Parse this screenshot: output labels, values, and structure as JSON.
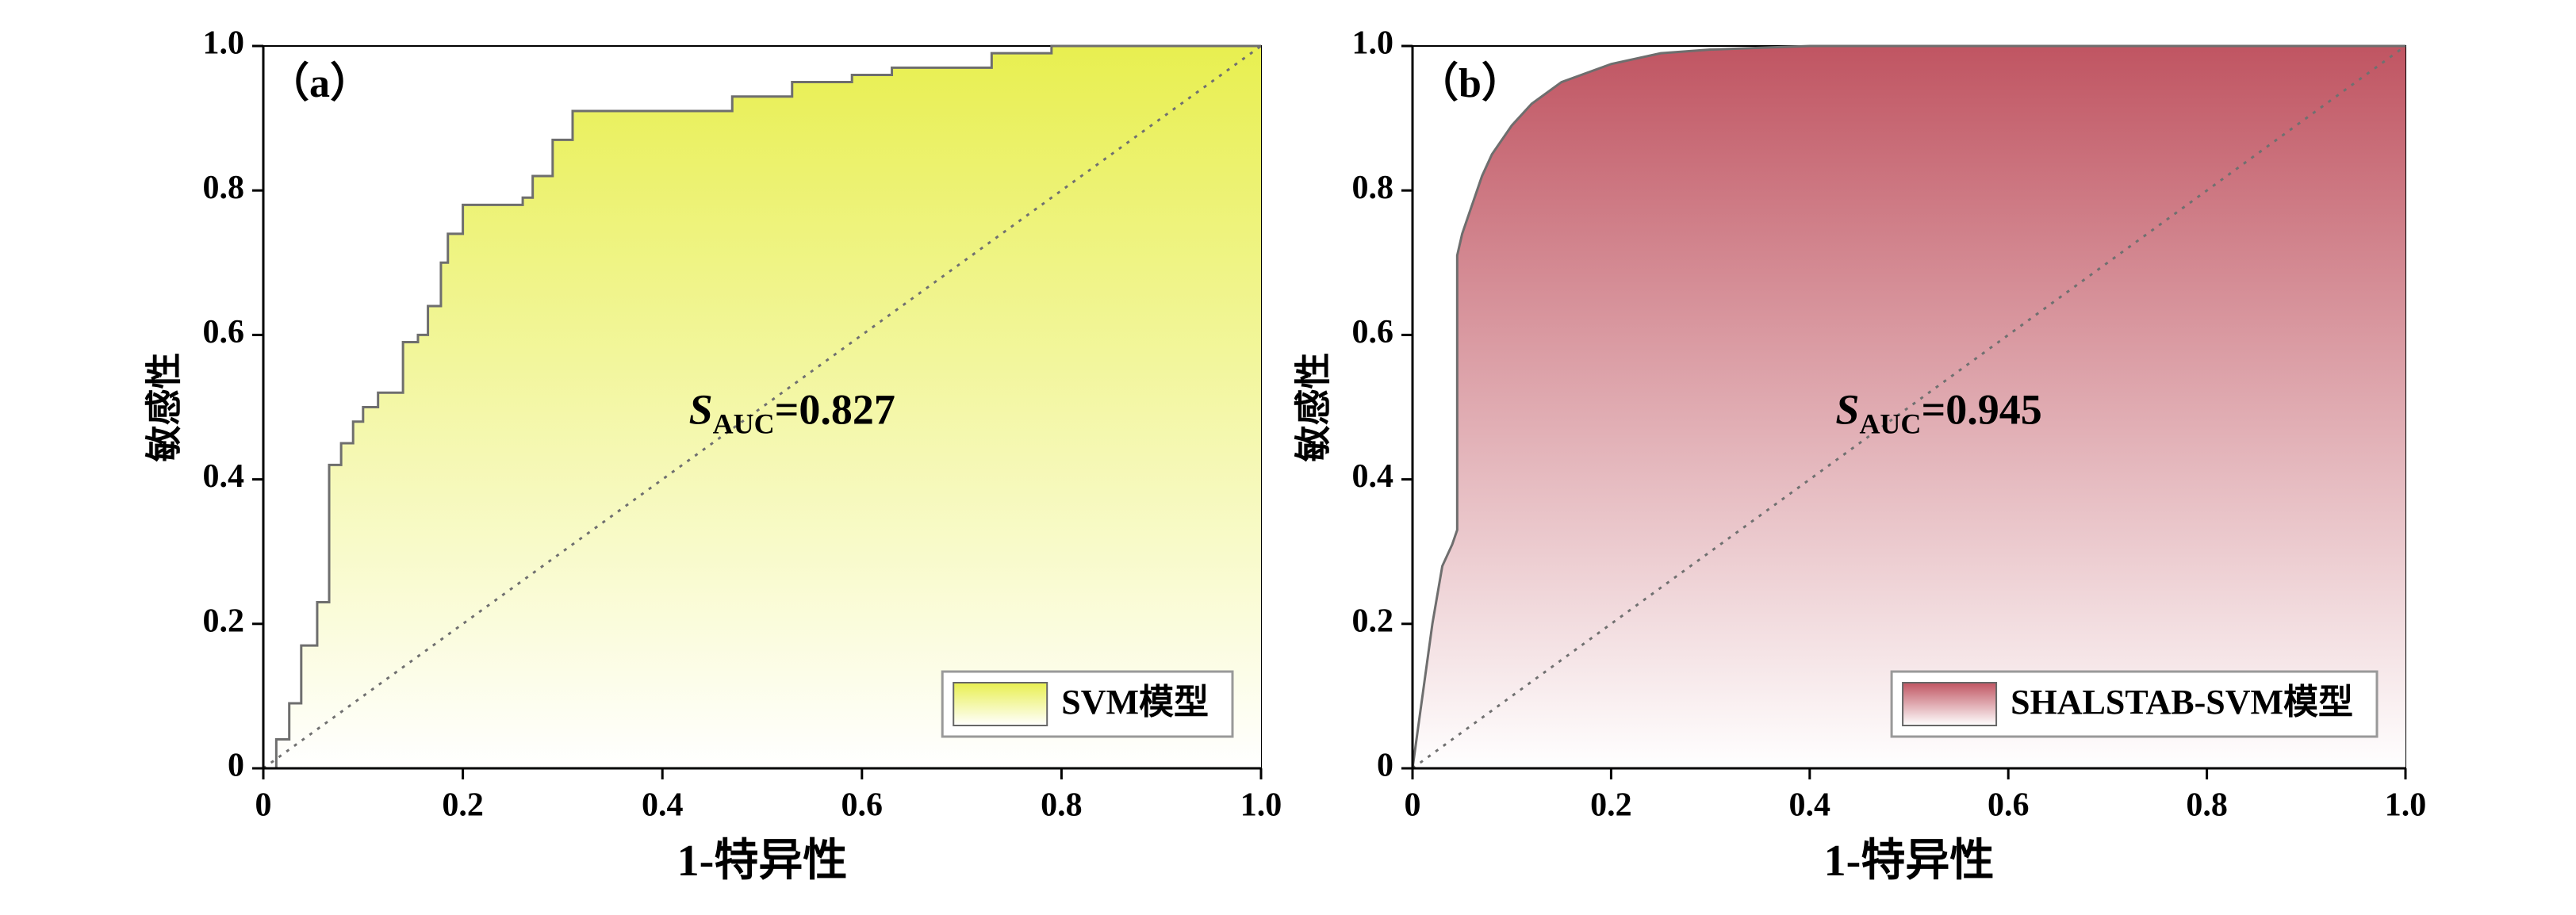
{
  "chart_data": [
    {
      "type": "area",
      "title": "（a）",
      "x_label": "1-特异性",
      "y_label": "敏感性",
      "annotation": {
        "symbol": "S",
        "subscript": "AUC",
        "text": "=0.827"
      },
      "x": [
        0,
        0.013,
        0.013,
        0.026,
        0.026,
        0.038,
        0.038,
        0.054,
        0.054,
        0.066,
        0.066,
        0.078,
        0.078,
        0.09,
        0.09,
        0.1,
        0.1,
        0.115,
        0.115,
        0.14,
        0.14,
        0.155,
        0.155,
        0.165,
        0.165,
        0.178,
        0.178,
        0.185,
        0.185,
        0.2,
        0.2,
        0.26,
        0.26,
        0.27,
        0.27,
        0.29,
        0.29,
        0.31,
        0.31,
        0.47,
        0.47,
        0.53,
        0.53,
        0.59,
        0.59,
        0.63,
        0.63,
        0.73,
        0.73,
        0.79,
        0.79,
        1.0
      ],
      "series": [
        {
          "name": "SVM模型",
          "color": "#e8ef50",
          "values": [
            0,
            0,
            0.04,
            0.04,
            0.09,
            0.09,
            0.17,
            0.17,
            0.23,
            0.23,
            0.42,
            0.42,
            0.45,
            0.45,
            0.48,
            0.48,
            0.5,
            0.5,
            0.52,
            0.52,
            0.59,
            0.59,
            0.6,
            0.6,
            0.64,
            0.64,
            0.7,
            0.7,
            0.74,
            0.74,
            0.78,
            0.78,
            0.79,
            0.79,
            0.82,
            0.82,
            0.87,
            0.87,
            0.91,
            0.91,
            0.93,
            0.93,
            0.95,
            0.95,
            0.96,
            0.96,
            0.97,
            0.97,
            0.99,
            0.99,
            1.0,
            1.0
          ]
        }
      ],
      "xlim": [
        0,
        1
      ],
      "ylim": [
        0,
        1
      ],
      "xticks": [
        0,
        0.2,
        0.4,
        0.6,
        0.8,
        {
          "value": 1,
          "label": "1.0"
        }
      ],
      "yticks": [
        0,
        0.2,
        0.4,
        0.6,
        0.8,
        {
          "value": 1,
          "label": "1.0"
        }
      ],
      "legend": "lower right"
    },
    {
      "type": "area",
      "title": "（b）",
      "x_label": "1-特异性",
      "y_label": "敏感性",
      "annotation": {
        "symbol": "S",
        "subscript": "AUC",
        "text": "=0.945"
      },
      "x": [
        0,
        0.01,
        0.02,
        0.03,
        0.04,
        0.045,
        0.045,
        0.05,
        0.06,
        0.07,
        0.08,
        0.1,
        0.12,
        0.15,
        0.2,
        0.25,
        0.3,
        0.4,
        0.5,
        1.0
      ],
      "series": [
        {
          "name": "SHALSTAB-SVM模型",
          "color": "#c05562",
          "values": [
            0,
            0.1,
            0.2,
            0.28,
            0.31,
            0.33,
            0.71,
            0.74,
            0.78,
            0.82,
            0.85,
            0.89,
            0.92,
            0.95,
            0.975,
            0.99,
            0.995,
            1,
            1,
            1
          ]
        }
      ],
      "xlim": [
        0,
        1
      ],
      "ylim": [
        0,
        1
      ],
      "xticks": [
        0,
        0.2,
        0.4,
        0.6,
        0.8,
        {
          "value": 1,
          "label": "1.0"
        }
      ],
      "yticks": [
        0,
        0.2,
        0.4,
        0.6,
        0.8,
        {
          "value": 1,
          "label": "1.0"
        }
      ],
      "legend": "lower right"
    }
  ]
}
